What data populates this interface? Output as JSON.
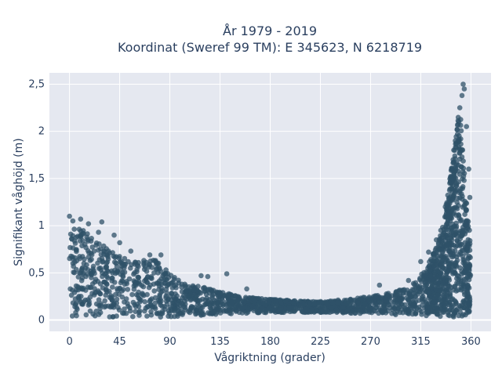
{
  "chart_data": {
    "type": "scatter",
    "title_lines": [
      "År 1979 - 2019",
      "Koordinat (Sweref 99 TM): E 345623, N 6218719"
    ],
    "xlabel": "Vågriktning (grader)",
    "ylabel": "Signifikant våghöjd (m)",
    "xlim": [
      -18,
      378
    ],
    "ylim": [
      -0.12,
      2.62
    ],
    "xticks": [
      0,
      45,
      90,
      135,
      180,
      225,
      270,
      315,
      360
    ],
    "xtick_labels": [
      "0",
      "45",
      "90",
      "135",
      "180",
      "225",
      "270",
      "315",
      "360"
    ],
    "yticks": [
      0,
      0.5,
      1,
      1.5,
      2,
      2.5
    ],
    "ytick_labels": [
      "0",
      "0,5",
      "1",
      "1,5",
      "2",
      "2,5"
    ],
    "grid": true,
    "marker_color": "#2f5168",
    "plot_background": "#e5e8f0",
    "envelope": {
      "x": [
        0,
        10,
        20,
        30,
        40,
        50,
        60,
        70,
        80,
        90,
        100,
        110,
        120,
        135,
        150,
        165,
        180,
        195,
        210,
        225,
        240,
        255,
        270,
        285,
        300,
        310,
        320,
        330,
        335,
        340,
        345,
        350,
        355,
        360
      ],
      "ymax": [
        1.02,
        0.97,
        0.88,
        0.8,
        0.72,
        0.65,
        0.62,
        0.64,
        0.66,
        0.5,
        0.4,
        0.37,
        0.35,
        0.3,
        0.26,
        0.24,
        0.22,
        0.21,
        0.2,
        0.2,
        0.21,
        0.23,
        0.25,
        0.28,
        0.33,
        0.4,
        0.55,
        0.8,
        1.0,
        1.4,
        1.85,
        2.3,
        1.4,
        0.8
      ],
      "ymin": [
        0.02,
        0.02,
        0.03,
        0.03,
        0.03,
        0.03,
        0.03,
        0.03,
        0.03,
        0.03,
        0.04,
        0.04,
        0.05,
        0.06,
        0.07,
        0.07,
        0.08,
        0.08,
        0.08,
        0.08,
        0.08,
        0.07,
        0.07,
        0.06,
        0.05,
        0.05,
        0.04,
        0.03,
        0.03,
        0.03,
        0.03,
        0.03,
        0.03,
        0.02
      ]
    },
    "outliers": [
      {
        "x": 0,
        "y": 1.1
      },
      {
        "x": 3,
        "y": 1.05
      },
      {
        "x": 10,
        "y": 1.07
      },
      {
        "x": 17,
        "y": 1.02
      },
      {
        "x": 29,
        "y": 1.04
      },
      {
        "x": 26,
        "y": 0.93
      },
      {
        "x": 40,
        "y": 0.9
      },
      {
        "x": 45,
        "y": 0.82
      },
      {
        "x": 55,
        "y": 0.73
      },
      {
        "x": 72,
        "y": 0.69
      },
      {
        "x": 82,
        "y": 0.69
      },
      {
        "x": 118,
        "y": 0.47
      },
      {
        "x": 124,
        "y": 0.46
      },
      {
        "x": 141,
        "y": 0.49
      },
      {
        "x": 159,
        "y": 0.33
      },
      {
        "x": 278,
        "y": 0.37
      },
      {
        "x": 304,
        "y": 0.42
      },
      {
        "x": 315,
        "y": 0.62
      },
      {
        "x": 322,
        "y": 0.72
      },
      {
        "x": 329,
        "y": 0.85
      },
      {
        "x": 333,
        "y": 0.95
      },
      {
        "x": 337,
        "y": 1.2
      },
      {
        "x": 341,
        "y": 1.45
      },
      {
        "x": 344,
        "y": 1.7
      },
      {
        "x": 346,
        "y": 1.9
      },
      {
        "x": 349,
        "y": 2.1
      },
      {
        "x": 350,
        "y": 2.25
      },
      {
        "x": 352,
        "y": 2.38
      },
      {
        "x": 353,
        "y": 2.5
      },
      {
        "x": 354,
        "y": 2.45
      },
      {
        "x": 356,
        "y": 2.05
      },
      {
        "x": 358,
        "y": 1.6
      },
      {
        "x": 359,
        "y": 1.3
      }
    ],
    "point_count": 2400
  }
}
